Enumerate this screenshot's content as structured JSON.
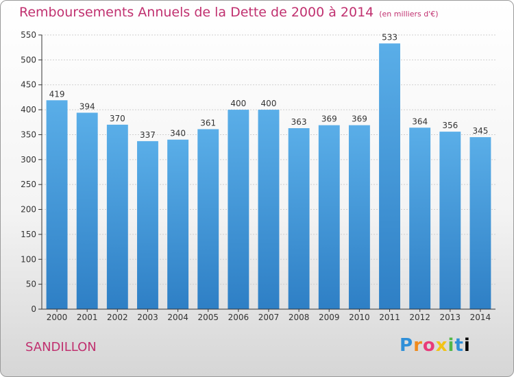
{
  "header": {
    "title": "Remboursements Annuels de la Dette de 2000 à 2014",
    "unit": "(en milliers d'€)"
  },
  "footer": {
    "city": "SANDILLON",
    "logo": "Proxiti"
  },
  "colors": {
    "bar_top": "#5aaee8",
    "bar_bottom": "#2e7fc5",
    "title": "#c0306f",
    "axis": "#333333",
    "grid": "#cfcfcf"
  },
  "chart_data": {
    "type": "bar",
    "title": "Remboursements Annuels de la Dette de 2000 à 2014",
    "xlabel": "",
    "ylabel": "",
    "categories": [
      "2000",
      "2001",
      "2002",
      "2003",
      "2004",
      "2005",
      "2006",
      "2007",
      "2008",
      "2009",
      "2010",
      "2011",
      "2012",
      "2013",
      "2014"
    ],
    "values": [
      419,
      394,
      370,
      337,
      340,
      361,
      400,
      400,
      363,
      369,
      369,
      533,
      364,
      356,
      345
    ],
    "ylim": [
      0,
      550
    ],
    "yticks": [
      0,
      50,
      100,
      150,
      200,
      250,
      300,
      350,
      400,
      450,
      500,
      550
    ],
    "grid": true,
    "legend": "none"
  }
}
